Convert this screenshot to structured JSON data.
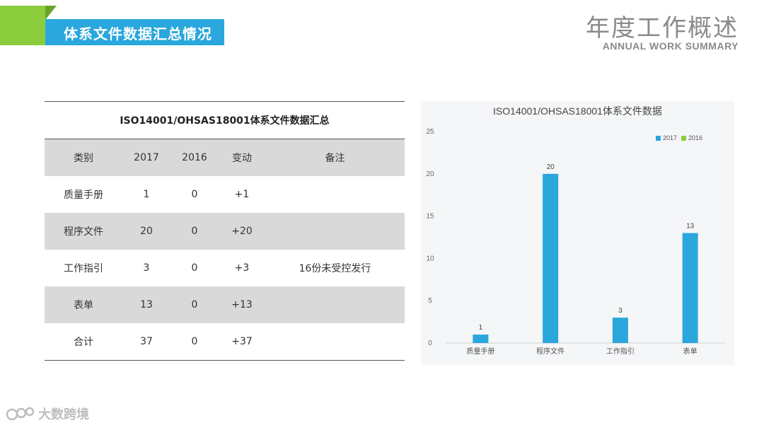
{
  "header": {
    "banner_title": "体系文件数据汇总情况",
    "main_title": "年度工作概述",
    "sub_title": "ANNUAL WORK SUMMARY"
  },
  "table": {
    "title": "ISO14001/OHSAS18001体系文件数据汇总",
    "columns": [
      "类别",
      "2017",
      "2016",
      "变动",
      "备注"
    ],
    "rows": [
      [
        "质量手册",
        "1",
        "0",
        "+1",
        ""
      ],
      [
        "程序文件",
        "20",
        "0",
        "+20",
        ""
      ],
      [
        "工作指引",
        "3",
        "0",
        "+3",
        "16份未受控发行"
      ],
      [
        "表单",
        "13",
        "0",
        "+13",
        ""
      ],
      [
        "合计",
        "37",
        "0",
        "+37",
        ""
      ]
    ]
  },
  "chart_data": {
    "type": "bar",
    "title": "ISO14001/OHSAS18001体系文件数据",
    "categories": [
      "质量手册",
      "程序文件",
      "工作指引",
      "表单"
    ],
    "series": [
      {
        "name": "2017",
        "values": [
          1,
          20,
          3,
          13
        ],
        "color": "#2aa7dc"
      },
      {
        "name": "2016",
        "values": [
          0,
          0,
          0,
          0
        ],
        "color": "#8ccd3e"
      }
    ],
    "ylim": [
      0,
      25
    ],
    "yticks": [
      0,
      5,
      10,
      15,
      20,
      25
    ],
    "legend_position": "top-right",
    "grid": false,
    "data_labels": true
  },
  "watermark": {
    "text": "大数跨境"
  },
  "colors": {
    "accent_blue": "#2aa7dc",
    "accent_green": "#8ccd3e"
  }
}
